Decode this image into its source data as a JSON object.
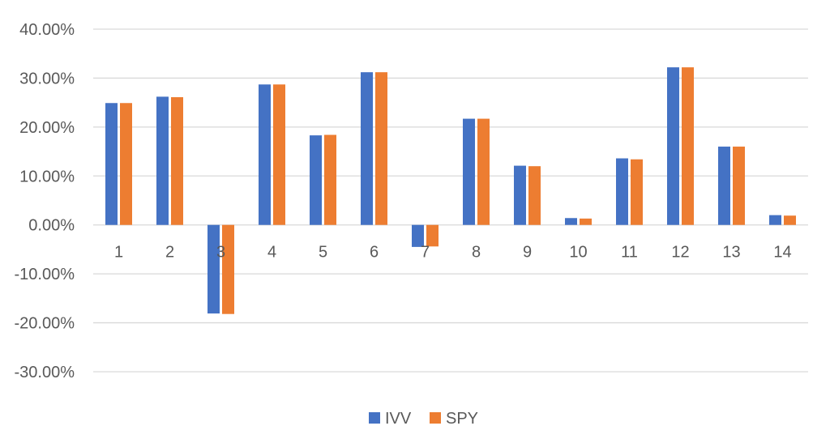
{
  "chart_data": {
    "type": "bar",
    "title": "",
    "xlabel": "",
    "ylabel": "",
    "categories": [
      "1",
      "2",
      "3",
      "4",
      "5",
      "6",
      "7",
      "8",
      "9",
      "10",
      "11",
      "12",
      "13",
      "14"
    ],
    "series": [
      {
        "name": "IVV",
        "color": "#4472C4",
        "values": [
          24.9,
          26.2,
          -18.1,
          28.7,
          18.3,
          31.2,
          -4.5,
          21.7,
          12.1,
          1.4,
          13.6,
          32.2,
          16.0,
          2.0
        ]
      },
      {
        "name": "SPY",
        "color": "#ED7D31",
        "values": [
          24.9,
          26.1,
          -18.2,
          28.7,
          18.4,
          31.2,
          -4.4,
          21.7,
          12.0,
          1.3,
          13.4,
          32.2,
          16.0,
          1.9
        ]
      }
    ],
    "ylim": [
      -30,
      40
    ],
    "yticks": [
      40,
      30,
      20,
      10,
      0,
      -10,
      -20,
      -30
    ],
    "ytick_labels": [
      "40.00%",
      "30.00%",
      "20.00%",
      "10.00%",
      "0.00%",
      "-10.00%",
      "-20.00%",
      "-30.00%"
    ],
    "grid": true,
    "legend_position": "bottom"
  }
}
